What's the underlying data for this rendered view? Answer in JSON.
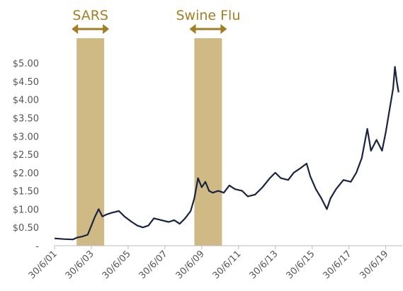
{
  "chart_data": {
    "type": "line",
    "x": [
      2001.5,
      2002.0,
      2002.5,
      2002.7,
      2003.0,
      2003.3,
      2003.5,
      2003.7,
      2003.9,
      2004.1,
      2004.3,
      2004.6,
      2005.0,
      2005.3,
      2005.7,
      2006.0,
      2006.3,
      2006.6,
      2006.9,
      2007.3,
      2007.7,
      2008.0,
      2008.3,
      2008.6,
      2008.9,
      2009.1,
      2009.3,
      2009.5,
      2009.7,
      2009.9,
      2010.1,
      2010.4,
      2010.7,
      2011.0,
      2011.3,
      2011.7,
      2012.0,
      2012.4,
      2012.8,
      2013.2,
      2013.5,
      2013.8,
      2014.2,
      2014.5,
      2014.8,
      2015.2,
      2015.4,
      2015.7,
      2016.0,
      2016.3,
      2016.5,
      2016.8,
      2017.2,
      2017.6,
      2017.9,
      2018.2,
      2018.5,
      2018.7,
      2019.0,
      2019.3,
      2019.5,
      2019.7,
      2019.9,
      2020.0,
      2020.1,
      2020.2
    ],
    "series": [
      {
        "color": "#1a2340",
        "values": [
          0.2,
          0.18,
          0.17,
          0.22,
          0.25,
          0.3,
          0.55,
          0.8,
          1.0,
          0.8,
          0.85,
          0.9,
          0.95,
          0.8,
          0.65,
          0.55,
          0.5,
          0.55,
          0.75,
          0.7,
          0.65,
          0.7,
          0.6,
          0.75,
          0.95,
          1.3,
          1.85,
          1.6,
          1.75,
          1.5,
          1.45,
          1.5,
          1.45,
          1.65,
          1.55,
          1.5,
          1.35,
          1.4,
          1.6,
          1.85,
          2.0,
          1.85,
          1.8,
          2.0,
          2.1,
          2.25,
          1.9,
          1.55,
          1.3,
          1.0,
          1.3,
          1.55,
          1.8,
          1.75,
          2.0,
          2.4,
          3.2,
          2.6,
          2.9,
          2.6,
          3.1,
          3.7,
          4.3,
          4.9,
          4.5,
          4.2
        ]
      }
    ],
    "xlim": [
      2001.5,
      2020.4
    ],
    "xticks": [
      {
        "value": 2001.5,
        "label": "30/6/01"
      },
      {
        "value": 2003.5,
        "label": "30/6/03"
      },
      {
        "value": 2005.5,
        "label": "30/6/05"
      },
      {
        "value": 2007.5,
        "label": "30/6/07"
      },
      {
        "value": 2009.5,
        "label": "30/6/09"
      },
      {
        "value": 2011.5,
        "label": "30/6/11"
      },
      {
        "value": 2013.5,
        "label": "30/6/13"
      },
      {
        "value": 2015.5,
        "label": "30/6/15"
      },
      {
        "value": 2017.5,
        "label": "30/6/17"
      },
      {
        "value": 2019.5,
        "label": "30/6/19"
      }
    ],
    "ylim": [
      0,
      5.1
    ],
    "yticks": [
      {
        "value": 0,
        "label": "-"
      },
      {
        "value": 0.5,
        "label": "$0.50"
      },
      {
        "value": 1,
        "label": "$1.00"
      },
      {
        "value": 1.5,
        "label": "$1.50"
      },
      {
        "value": 2,
        "label": "$2.00"
      },
      {
        "value": 2.5,
        "label": "$2.50"
      },
      {
        "value": 3,
        "label": "$3.00"
      },
      {
        "value": 3.5,
        "label": "$3.50"
      },
      {
        "value": 4,
        "label": "$4.00"
      },
      {
        "value": 4.5,
        "label": "$4.50"
      },
      {
        "value": 5,
        "label": "$5.00"
      }
    ],
    "spans": [
      {
        "label": "SARS",
        "x0": 2002.7,
        "x1": 2004.2,
        "color": "#cfb984"
      },
      {
        "label": "Swine Flu",
        "x0": 2009.1,
        "x1": 2010.6,
        "color": "#cfb984"
      }
    ],
    "annotation_color": "#a27f24"
  }
}
